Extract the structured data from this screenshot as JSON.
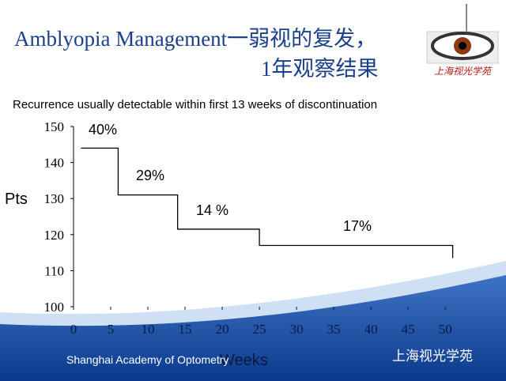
{
  "header": {
    "title_line1": "Amblyopia Management一弱视的复发，",
    "title_line2": "1年观察结果",
    "logo_text": "上海视光学苑"
  },
  "chart_data": {
    "type": "line",
    "step": "post",
    "subtitle": "Recurrence usually detectable within first 13 weeks of discontinuation",
    "y_label": "Pts",
    "x_label": "Weeks",
    "x": [
      1,
      6,
      14,
      25,
      51
    ],
    "series": [
      {
        "color": "#000000",
        "values": [
          144,
          131,
          121.5,
          117,
          113.5
        ]
      }
    ],
    "annotations": [
      "40%",
      "29%",
      "14 %",
      "17%"
    ],
    "xlim": [
      0,
      52
    ],
    "xticks": [
      0,
      5,
      10,
      15,
      20,
      25,
      30,
      35,
      40,
      45,
      50
    ],
    "ylim": [
      100,
      150
    ],
    "yticks": [
      100,
      110,
      120,
      130,
      140,
      150
    ]
  },
  "footer": {
    "academy": "Shanghai Academy of Optometry",
    "watermark": "上海视光学苑"
  }
}
